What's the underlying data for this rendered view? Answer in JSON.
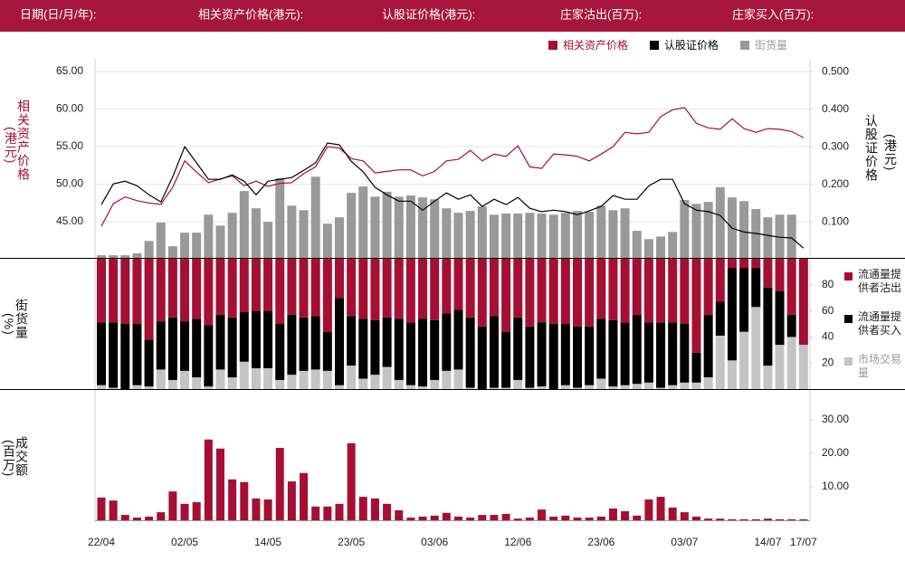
{
  "header": {
    "labels": [
      "日期(日/月/年):",
      "相关资产价格(港元):",
      "认股证价格(港元):",
      "庄家沽出(百万):",
      "庄家买入(百万):"
    ]
  },
  "chart_data": [
    {
      "type": "combo",
      "legend": "top-right",
      "grid": true,
      "ylabel": "相关资产价格",
      "ylabel_unit": "(港元)",
      "y2label": "认股证价格",
      "y2label_unit": "(港元)",
      "ylim": [
        40.18,
        66.69
      ],
      "yticks": [
        {
          "value": 65,
          "label": "65.00"
        },
        {
          "value": 60,
          "label": "60.00"
        },
        {
          "value": 55,
          "label": "55.00"
        },
        {
          "value": 50,
          "label": "50.00"
        },
        {
          "value": 45,
          "label": "45.00"
        }
      ],
      "y2lim": [
        0.004,
        0.534
      ],
      "y2ticks": [
        {
          "value": 0.5,
          "label": "0.500"
        },
        {
          "value": 0.4,
          "label": "0.400"
        },
        {
          "value": 0.3,
          "label": "0.300"
        },
        {
          "value": 0.2,
          "label": "0.200"
        },
        {
          "value": 0.1,
          "label": "0.100"
        }
      ],
      "series": [
        {
          "name": "相关资产价格",
          "type": "line",
          "color": "#a50f33",
          "values": [
            44.4,
            47.4,
            48.3,
            47.8,
            47.5,
            47.3,
            49.6,
            53.1,
            51.6,
            50.2,
            50.7,
            51.1,
            49.8,
            50.4,
            49.7,
            50.1,
            50.2,
            51.4,
            52.3,
            55.0,
            54.8,
            53.4,
            53.1,
            51.5,
            51.7,
            51.9,
            51.9,
            51.1,
            51.7,
            53.1,
            53.3,
            54.5,
            53.1,
            54.0,
            53.7,
            55.1,
            52.3,
            52.1,
            54.0,
            53.9,
            53.7,
            53.1,
            54.0,
            55.0,
            56.9,
            56.7,
            56.9,
            59.0,
            59.9,
            60.2,
            58.1,
            57.5,
            57.3,
            58.7,
            57.4,
            56.9,
            57.4,
            57.3,
            57.0,
            56.2
          ]
        },
        {
          "name": "认股证价格",
          "type": "line",
          "axis": "y2",
          "color": "#000000",
          "values": [
            0.146,
            0.201,
            0.208,
            0.196,
            0.172,
            0.153,
            0.22,
            0.3,
            0.257,
            0.213,
            0.213,
            0.225,
            0.208,
            0.172,
            0.208,
            0.213,
            0.218,
            0.237,
            0.257,
            0.31,
            0.305,
            0.261,
            0.233,
            0.192,
            0.172,
            0.155,
            0.155,
            0.131,
            0.155,
            0.177,
            0.16,
            0.172,
            0.141,
            0.16,
            0.146,
            0.165,
            0.136,
            0.127,
            0.131,
            0.127,
            0.119,
            0.129,
            0.141,
            0.17,
            0.16,
            0.16,
            0.196,
            0.213,
            0.213,
            0.148,
            0.131,
            0.127,
            0.117,
            0.083,
            0.073,
            0.069,
            0.064,
            0.059,
            0.057,
            0.03
          ]
        },
        {
          "name": "街货量",
          "type": "bar",
          "axis": "y2",
          "color": "#999999",
          "values": [
            0.011,
            0.011,
            0.011,
            0.016,
            0.049,
            0.098,
            0.035,
            0.071,
            0.071,
            0.119,
            0.09,
            0.124,
            0.182,
            0.136,
            0.1,
            0.216,
            0.143,
            0.131,
            0.22,
            0.095,
            0.112,
            0.177,
            0.194,
            0.167,
            0.18,
            0.167,
            0.17,
            0.165,
            0.16,
            0.136,
            0.124,
            0.129,
            0.141,
            0.119,
            0.122,
            0.122,
            0.124,
            0.122,
            0.119,
            0.124,
            0.129,
            0.127,
            0.143,
            0.131,
            0.136,
            0.076,
            0.054,
            0.061,
            0.073,
            0.158,
            0.148,
            0.153,
            0.192,
            0.165,
            0.155,
            0.134,
            0.112,
            0.119,
            0.119,
            null
          ]
        }
      ]
    },
    {
      "type": "stacked_bar",
      "legend": "right",
      "ylabel": "街货量",
      "ylabel_unit": "(%)",
      "ylim": [
        0,
        100
      ],
      "yticks": [
        80,
        60,
        40,
        20
      ],
      "series": [
        {
          "name": "市场交易量",
          "color": "#c4c4c4",
          "values": [
            3,
            1,
            0,
            3,
            2,
            15,
            7,
            14,
            9,
            2,
            15,
            9,
            21,
            16,
            16,
            7,
            11,
            14,
            15,
            14,
            3,
            18,
            8,
            11,
            17,
            7,
            3,
            2,
            7,
            14,
            15,
            1,
            0,
            1,
            1,
            7,
            1,
            2,
            0,
            3,
            1,
            3,
            8,
            2,
            3,
            4,
            5,
            1,
            3,
            5,
            5,
            9,
            41,
            22,
            44,
            63,
            18,
            34,
            40,
            34
          ]
        },
        {
          "name": "流通量提供者买入",
          "color": "#000000",
          "values": [
            48,
            50,
            50,
            47,
            36,
            37,
            48,
            38,
            45,
            47,
            42,
            46,
            38,
            44,
            44,
            43,
            46,
            41,
            41,
            30,
            67,
            38,
            46,
            42,
            38,
            47,
            48,
            52,
            46,
            44,
            46,
            54,
            48,
            55,
            43,
            48,
            47,
            49,
            50,
            47,
            47,
            45,
            46,
            51,
            48,
            53,
            46,
            50,
            48,
            45,
            23,
            48,
            26,
            71,
            49,
            30,
            60,
            41,
            17,
            0
          ]
        },
        {
          "name": "流通量提供者沽出",
          "color": "#a50f33",
          "values": [
            49,
            49,
            50,
            50,
            62,
            48,
            45,
            48,
            46,
            51,
            43,
            45,
            41,
            40,
            40,
            50,
            43,
            45,
            44,
            56,
            30,
            44,
            46,
            47,
            45,
            46,
            49,
            46,
            47,
            42,
            39,
            45,
            52,
            44,
            56,
            45,
            52,
            49,
            50,
            50,
            52,
            52,
            46,
            47,
            49,
            43,
            49,
            49,
            49,
            50,
            72,
            43,
            33,
            7,
            7,
            7,
            22,
            25,
            43,
            66
          ]
        }
      ]
    },
    {
      "type": "bar",
      "ylabel": "成交额",
      "ylabel_unit": "(百万)",
      "color": "#a50f33",
      "ylim": [
        0,
        32.4
      ],
      "yticks": [
        {
          "value": 30,
          "label": "30.00"
        },
        {
          "value": 20,
          "label": "20.00"
        },
        {
          "value": 10,
          "label": "10.00"
        }
      ],
      "categories": [
        "22/04",
        null,
        null,
        null,
        null,
        null,
        null,
        "02/05",
        null,
        null,
        null,
        null,
        null,
        null,
        "14/05",
        null,
        null,
        null,
        null,
        null,
        null,
        "23/05",
        null,
        null,
        null,
        null,
        null,
        null,
        "03/06",
        null,
        null,
        null,
        null,
        null,
        null,
        "12/06",
        null,
        null,
        null,
        null,
        null,
        null,
        "23/06",
        null,
        null,
        null,
        null,
        null,
        null,
        "03/07",
        null,
        null,
        null,
        null,
        null,
        null,
        "14/07",
        null,
        null,
        "17/07"
      ],
      "values": [
        6.8,
        5.9,
        1.6,
        0.8,
        1.1,
        2.4,
        8.6,
        4.9,
        5.4,
        24.1,
        21.4,
        12.2,
        11.4,
        6.5,
        6.2,
        21.6,
        11.6,
        14.1,
        4.1,
        4.1,
        4.9,
        23.0,
        7.0,
        6.5,
        4.9,
        3.0,
        0.8,
        1.1,
        1.4,
        2.2,
        1.1,
        0.8,
        1.6,
        1.6,
        1.9,
        0.5,
        0.8,
        3.2,
        1.1,
        1.4,
        0.8,
        0.8,
        1.1,
        3.5,
        2.7,
        1.4,
        6.2,
        7.0,
        3.8,
        2.4,
        1.1,
        0.5,
        0.5,
        0.3,
        0.3,
        0.3,
        0.5,
        0.3,
        0.3,
        0.3
      ]
    }
  ]
}
